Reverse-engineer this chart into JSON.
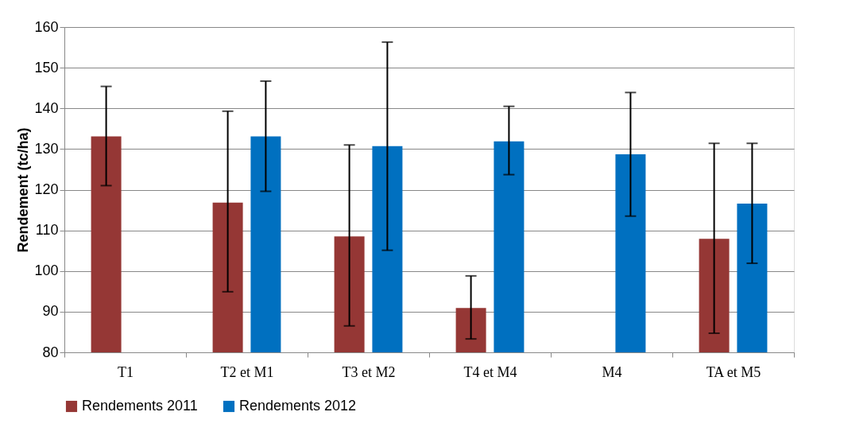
{
  "chart_data": {
    "type": "bar",
    "ylabel": "Rendement (tc/ha)",
    "categories": [
      "T1",
      "T2 et M1",
      "T3 et M2",
      "T4 et M4",
      "M4",
      "TA et M5"
    ],
    "series": [
      {
        "name": "Rendements 2011",
        "color": "#953735",
        "values": [
          133.1,
          116.8,
          108.5,
          90.9,
          null,
          107.9
        ],
        "errors": [
          [
            121.0,
            145.4
          ],
          [
            94.9,
            139.3
          ],
          [
            86.5,
            131.0
          ],
          [
            83.3,
            98.8
          ],
          null,
          [
            84.7,
            131.4
          ]
        ]
      },
      {
        "name": "Rendements 2012",
        "color": "#0070c0",
        "values": [
          null,
          133.1,
          130.7,
          131.9,
          128.7,
          116.6
        ],
        "errors": [
          null,
          [
            119.6,
            146.7
          ],
          [
            105.1,
            156.3
          ],
          [
            123.7,
            140.5
          ],
          [
            113.5,
            143.9
          ],
          [
            101.9,
            131.4
          ]
        ]
      }
    ],
    "ylim": [
      80,
      160
    ],
    "yticks": [
      80,
      90,
      100,
      110,
      120,
      130,
      140,
      150,
      160
    ],
    "grid": "y",
    "legend": "bottom"
  }
}
